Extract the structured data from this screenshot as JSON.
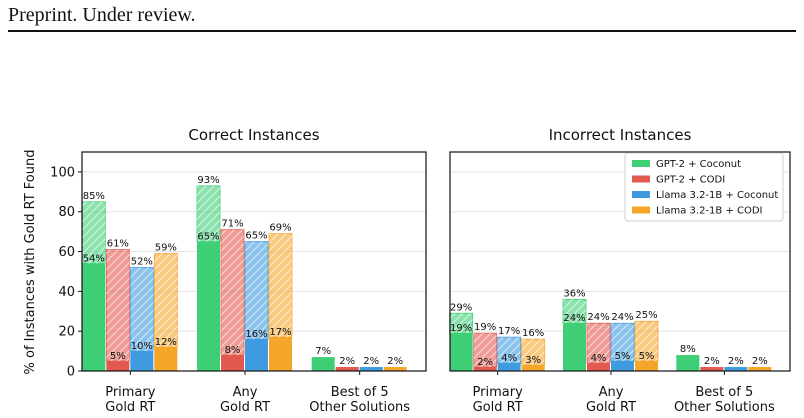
{
  "header": {
    "text": "Preprint. Under review."
  },
  "colors": {
    "GPT-2 + Coconut": "#3ecf76",
    "GPT-2 + CODI": "#e25a4f",
    "Llama 3.2-1B + Coconut": "#3e9be0",
    "Llama 3.2-1B + CODI": "#f5a52a"
  },
  "chart_data": {
    "type": "bar",
    "ylabel": "% of Instances with Gold RT Found",
    "ylim": [
      0,
      110
    ],
    "yticks": [
      0,
      20,
      40,
      60,
      80,
      100
    ],
    "grid": true,
    "legend_position": "top-right",
    "series": [
      {
        "name": "GPT-2 + Coconut"
      },
      {
        "name": "GPT-2 + CODI"
      },
      {
        "name": "Llama 3.2-1B + Coconut"
      },
      {
        "name": "Llama 3.2-1B + CODI"
      }
    ],
    "panels": [
      {
        "title": "Correct Instances",
        "categories": [
          [
            "Primary",
            "Gold RT"
          ],
          [
            "Any",
            "Gold RT"
          ],
          [
            "Best of 5",
            "Other Solutions"
          ]
        ],
        "groups": [
          {
            "total": [
              85,
              61,
              52,
              59
            ],
            "solid": [
              54,
              5,
              10,
              12
            ]
          },
          {
            "total": [
              93,
              71,
              65,
              69
            ],
            "solid": [
              65,
              8,
              16,
              17
            ]
          },
          {
            "total": [
              7,
              2,
              2,
              2
            ],
            "solid": null
          }
        ]
      },
      {
        "title": "Incorrect Instances",
        "categories": [
          [
            "Primary",
            "Gold RT"
          ],
          [
            "Any",
            "Gold RT"
          ],
          [
            "Best of 5",
            "Other Solutions"
          ]
        ],
        "groups": [
          {
            "total": [
              29,
              19,
              17,
              16
            ],
            "solid": [
              19,
              2,
              4,
              3
            ]
          },
          {
            "total": [
              36,
              24,
              24,
              25
            ],
            "solid": [
              24,
              4,
              5,
              5
            ]
          },
          {
            "total": [
              8,
              2,
              2,
              2
            ],
            "solid": null
          }
        ]
      }
    ]
  }
}
